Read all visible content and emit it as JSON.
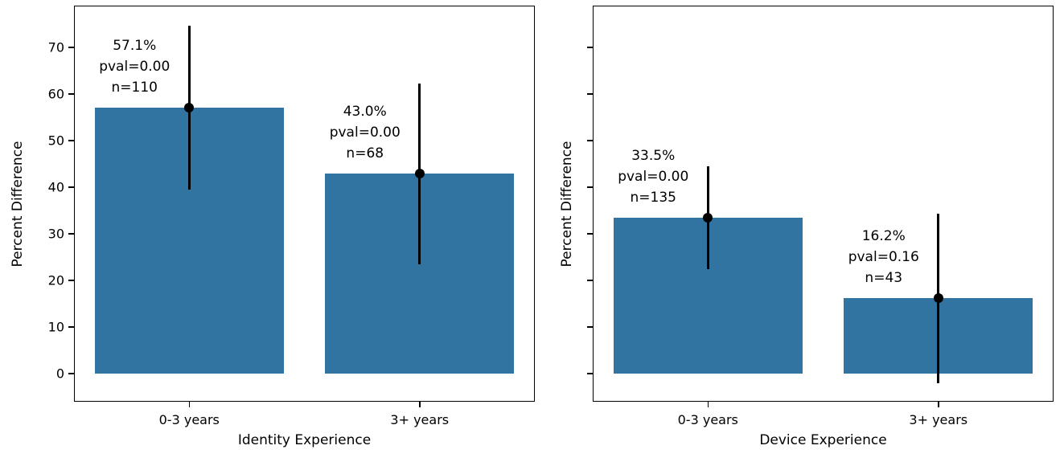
{
  "figure": {
    "background": "#ffffff",
    "text_color": "#000000"
  },
  "chart_data": [
    {
      "type": "bar",
      "title": "",
      "xlabel": "Identity Experience",
      "ylabel": "Percent Difference",
      "categories": [
        "0-3 years",
        "3+ years"
      ],
      "values": [
        57.1,
        43.0
      ],
      "error_low": [
        39.5,
        23.5
      ],
      "error_high": [
        74.7,
        62.3
      ],
      "annotations": [
        {
          "lines": [
            "57.1%",
            "pval=0.00",
            "n=110"
          ]
        },
        {
          "lines": [
            "43.0%",
            "pval=0.00",
            "n=68"
          ]
        }
      ],
      "yticks": [
        0,
        10,
        20,
        30,
        40,
        50,
        60,
        70
      ],
      "show_ytick_labels": true,
      "ylim": [
        -6,
        79
      ],
      "bar_color": "#3274a1",
      "errorbar_color": "#000000",
      "grid": false,
      "legend": null
    },
    {
      "type": "bar",
      "title": "",
      "xlabel": "Device Experience",
      "ylabel": "Percent Difference",
      "categories": [
        "0-3 years",
        "3+ years"
      ],
      "values": [
        33.5,
        16.2
      ],
      "error_low": [
        22.5,
        -2.0
      ],
      "error_high": [
        44.5,
        34.4
      ],
      "annotations": [
        {
          "lines": [
            "33.5%",
            "pval=0.00",
            "n=135"
          ]
        },
        {
          "lines": [
            "16.2%",
            "pval=0.16",
            "n=43"
          ]
        }
      ],
      "yticks": [
        0,
        10,
        20,
        30,
        40,
        50,
        60,
        70
      ],
      "show_ytick_labels": false,
      "ylim": [
        -6,
        79
      ],
      "bar_color": "#3274a1",
      "errorbar_color": "#000000",
      "grid": false,
      "legend": null
    }
  ]
}
